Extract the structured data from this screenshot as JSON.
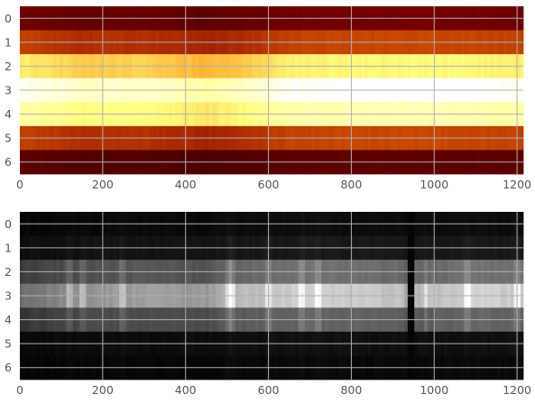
{
  "chart_data": [
    {
      "type": "heatmap",
      "colormap": "afmhot",
      "rows": [
        "0",
        "1",
        "2",
        "3",
        "4",
        "5",
        "6"
      ],
      "x_ticks": [
        0,
        200,
        400,
        600,
        800,
        1000,
        1200
      ],
      "x_ticks_labels": [
        "0",
        "200",
        "400",
        "600",
        "800",
        "1000",
        "1200"
      ],
      "xlim": [
        0,
        1215
      ],
      "grid": true,
      "row_intensity": [
        0.22,
        0.38,
        0.72,
        0.98,
        0.83,
        0.38,
        0.18
      ],
      "column_profile": [
        {
          "x": 0,
          "v": 1.0
        },
        {
          "x": 150,
          "v": 0.9
        },
        {
          "x": 300,
          "v": 0.92
        },
        {
          "x": 450,
          "v": 0.84
        },
        {
          "x": 550,
          "v": 0.9
        },
        {
          "x": 650,
          "v": 1.0
        },
        {
          "x": 800,
          "v": 1.02
        },
        {
          "x": 1000,
          "v": 1.03
        },
        {
          "x": 1215,
          "v": 1.0
        }
      ]
    },
    {
      "type": "heatmap",
      "colormap": "gray",
      "rows": [
        "0",
        "1",
        "2",
        "3",
        "4",
        "5",
        "6"
      ],
      "x_ticks": [
        0,
        200,
        400,
        600,
        800,
        1000,
        1200
      ],
      "x_ticks_labels": [
        "0",
        "200",
        "400",
        "600",
        "800",
        "1000",
        "1200"
      ],
      "xlim": [
        0,
        1215
      ],
      "grid": true,
      "row_intensity": [
        0.04,
        0.08,
        0.36,
        0.66,
        0.32,
        0.05,
        0.03
      ],
      "column_profile": [
        {
          "x": 0,
          "v": 0.65
        },
        {
          "x": 100,
          "v": 0.8
        },
        {
          "x": 200,
          "v": 0.9
        },
        {
          "x": 300,
          "v": 0.95
        },
        {
          "x": 450,
          "v": 0.9
        },
        {
          "x": 500,
          "v": 1.1
        },
        {
          "x": 600,
          "v": 1.15
        },
        {
          "x": 700,
          "v": 1.25
        },
        {
          "x": 800,
          "v": 1.2
        },
        {
          "x": 930,
          "v": 1.15
        },
        {
          "x": 945,
          "v": 0.1
        },
        {
          "x": 955,
          "v": 1.1
        },
        {
          "x": 1100,
          "v": 1.25
        },
        {
          "x": 1215,
          "v": 1.2
        }
      ],
      "bright_lines": [
        120,
        150,
        250,
        505,
        510,
        600,
        680,
        720,
        980,
        1080,
        1200
      ],
      "dark_gap": [
        935,
        955
      ]
    }
  ]
}
